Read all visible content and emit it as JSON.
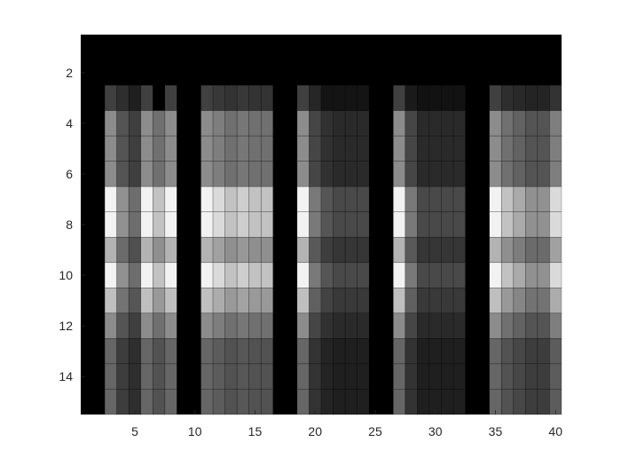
{
  "chart_data": {
    "type": "heatmap",
    "title": "",
    "xlabel": "",
    "ylabel": "",
    "colormap": "gray",
    "xlim": [
      0.5,
      40.5
    ],
    "ylim": [
      0.5,
      15.5
    ],
    "y_reversed": true,
    "grid": false,
    "x_ticks": [
      5,
      10,
      15,
      20,
      25,
      30,
      35,
      40
    ],
    "y_ticks": [
      2,
      4,
      6,
      8,
      10,
      12,
      14
    ],
    "x_tick_labels": [
      "5",
      "10",
      "15",
      "20",
      "25",
      "30",
      "35",
      "40"
    ],
    "y_tick_labels": [
      "2",
      "4",
      "6",
      "8",
      "10",
      "12",
      "14"
    ],
    "rows": 15,
    "cols": 40,
    "row_profile": [
      0,
      0,
      0.25,
      0.55,
      0.55,
      0.55,
      0.95,
      0.95,
      0.7,
      0.95,
      0.75,
      0.55,
      0.4,
      0.4,
      0.4
    ],
    "column_weights": [
      0,
      0,
      1,
      0.6,
      0.45,
      1,
      0.8,
      1,
      0,
      0,
      1,
      0.9,
      0.8,
      0.85,
      0.8,
      0.8,
      0,
      0,
      1,
      0.5,
      0.35,
      0.3,
      0.3,
      0.3,
      0,
      0,
      1,
      0.5,
      0.3,
      0.3,
      0.3,
      0.3,
      0,
      0,
      1,
      0.8,
      0.7,
      0.6,
      0.6,
      0.9
    ],
    "column_top": [
      0,
      0,
      0.25,
      0.18,
      0.12,
      0.25,
      0,
      0.25,
      0,
      0,
      0.25,
      0.22,
      0.2,
      0.22,
      0.2,
      0.2,
      0,
      0,
      0.25,
      0.15,
      0.08,
      0.08,
      0.08,
      0.08,
      0,
      0,
      0.25,
      0.1,
      0.07,
      0.07,
      0.07,
      0.07,
      0,
      0,
      0.25,
      0.18,
      0.16,
      0.14,
      0.14,
      0.2
    ]
  }
}
